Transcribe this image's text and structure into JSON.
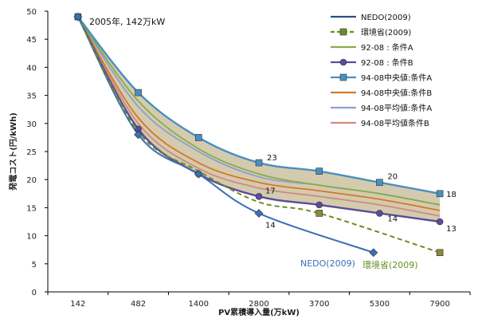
{
  "chart_data": {
    "type": "line",
    "annotation": "2005年, 142万kW",
    "xlabel": "PV累積導入量(万kW)",
    "ylabel": "発電コスト(円/kWh)",
    "categories": [
      "142",
      "482",
      "1400",
      "2800",
      "3700",
      "5300",
      "7900"
    ],
    "ylim": [
      0,
      50
    ],
    "yticks": [
      0,
      5,
      10,
      15,
      20,
      25,
      30,
      35,
      40,
      45,
      50
    ],
    "grid": "none",
    "legend_position": "right",
    "band": {
      "upper_series": 4,
      "lower_series": 3,
      "fill": "#ccc2a0"
    },
    "series": [
      {
        "name": "NEDO(2009)",
        "color": "#2c4f86",
        "dash": false,
        "marker": "none",
        "x": [
          0,
          1,
          2,
          3,
          4,
          5,
          6
        ],
        "values": [
          null,
          null,
          null,
          null,
          null,
          null,
          null
        ]
      },
      {
        "name": "環境省(2009)",
        "color": "#6b8e23",
        "dash": true,
        "marker": "square",
        "x": [
          0,
          4,
          6
        ],
        "values": [
          null,
          14,
          7
        ]
      },
      {
        "name": "92-08 : 条件A",
        "color": "#8aab4a",
        "dash": false,
        "marker": "none",
        "x": [
          0,
          1,
          2,
          3,
          4,
          5,
          6
        ],
        "values": [
          49,
          34,
          25.5,
          21,
          19,
          17.5,
          15.5
        ]
      },
      {
        "name": "92-08 : 条件B",
        "color": "#5b4c9c",
        "dash": false,
        "marker": "circle",
        "x": [
          0,
          1,
          2,
          3,
          4,
          5,
          6
        ],
        "values": [
          49,
          29,
          21,
          17,
          15.5,
          14,
          12.5
        ]
      },
      {
        "name": "94-08中央値:条件A",
        "color": "#4a8fc0",
        "dash": false,
        "marker": "square",
        "x": [
          0,
          1,
          2,
          3,
          4,
          5,
          6
        ],
        "values": [
          49,
          35.5,
          27.5,
          23,
          21.5,
          19.5,
          17.5
        ]
      },
      {
        "name": "94-08中央値:条件B",
        "color": "#d4782a",
        "dash": false,
        "marker": "none",
        "x": [
          0,
          1,
          2,
          3,
          4,
          5,
          6
        ],
        "values": [
          49,
          31,
          23,
          19.5,
          18,
          16.5,
          14.5
        ]
      },
      {
        "name": "94-08平均値:条件A",
        "color": "#8aa0cf",
        "dash": false,
        "marker": "none",
        "x": [
          0,
          1,
          2,
          3,
          4,
          5,
          6
        ],
        "values": [
          49,
          33,
          25,
          20.5,
          19,
          17.5,
          15.5
        ]
      },
      {
        "name": "94-08平均値条件B",
        "color": "#d08a80",
        "dash": false,
        "marker": "none",
        "x": [
          0,
          1,
          2,
          3,
          4,
          5,
          6
        ],
        "values": [
          49,
          30,
          22,
          18.5,
          17,
          15.5,
          13.5
        ]
      }
    ],
    "nedo_curve": {
      "color": "#3c6fb2",
      "x": [
        0,
        1,
        2,
        3,
        4.9
      ],
      "values": [
        49,
        28,
        21,
        14,
        7
      ]
    },
    "kankyo_curve": {
      "color": "#6b8e23",
      "x": [
        0,
        1,
        2,
        3,
        4,
        6
      ],
      "values": [
        49,
        28.5,
        21.5,
        16,
        14,
        7
      ]
    },
    "data_labels": [
      {
        "text": "23",
        "x": 3,
        "y": 23
      },
      {
        "text": "20",
        "x": 5,
        "y": 19.5
      },
      {
        "text": "18",
        "x": 6,
        "y": 17.5
      },
      {
        "text": "17",
        "x": 3,
        "y": 17
      },
      {
        "text": "14",
        "x": 5,
        "y": 14
      },
      {
        "text": "13",
        "x": 6,
        "y": 12.5
      },
      {
        "text": "14",
        "x": 3,
        "y": 14
      }
    ],
    "curve_labels": [
      {
        "text": "NEDO(2009)",
        "color": "#3c6fb2"
      },
      {
        "text": "環境省(2009)",
        "color": "#6b8e23"
      }
    ]
  }
}
